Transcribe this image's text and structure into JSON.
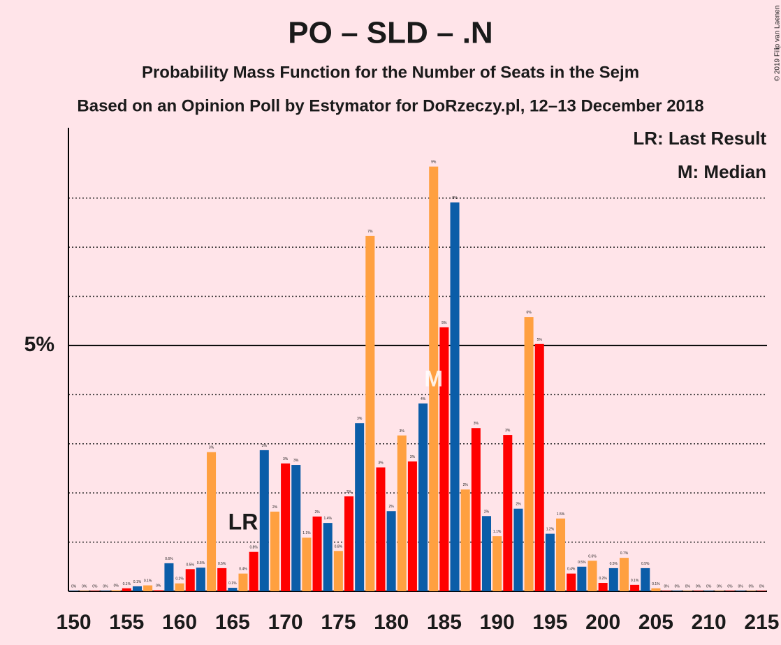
{
  "chart_data": {
    "type": "bar",
    "title": "PO – SLD – .N",
    "subtitle": "Probability Mass Function for the Number of Seats in the Sejm",
    "subtitle2": "Based on an Opinion Poll by Estymator for DoRzeczy.pl, 12–13 December 2018",
    "copyright": "© 2019 Filip van Laenen",
    "legend": [
      "LR: Last Result",
      "M: Median"
    ],
    "annotations": [
      {
        "label": "LR",
        "x": 166
      },
      {
        "label": "M",
        "x": 184
      }
    ],
    "colors": [
      "#ff0000",
      "#0b5da8",
      "#ffa040"
    ],
    "x": [
      150,
      151,
      152,
      153,
      154,
      155,
      156,
      157,
      158,
      159,
      160,
      161,
      162,
      163,
      164,
      165,
      166,
      167,
      168,
      169,
      170,
      171,
      172,
      173,
      174,
      175,
      176,
      177,
      178,
      179,
      180,
      181,
      182,
      183,
      184,
      185,
      186,
      187,
      188,
      189,
      190,
      191,
      192,
      193,
      194,
      195,
      196,
      197,
      198,
      199,
      200,
      201,
      202,
      203,
      204,
      205,
      206,
      207,
      208,
      209,
      210,
      211,
      212,
      213,
      214,
      215
    ],
    "values": [
      0.01,
      0.01,
      0.01,
      0.01,
      0.02,
      0.06,
      0.1,
      0.12,
      0.02,
      0.57,
      0.16,
      0.45,
      0.48,
      2.83,
      0.47,
      0.07,
      0.36,
      0.8,
      2.87,
      1.62,
      2.6,
      2.57,
      1.09,
      1.52,
      1.39,
      0.82,
      1.93,
      3.42,
      7.23,
      2.52,
      1.63,
      3.17,
      2.64,
      3.82,
      8.64,
      5.37,
      7.91,
      2.07,
      3.32,
      1.53,
      1.12,
      3.18,
      1.68,
      5.58,
      5.03,
      1.17,
      1.48,
      0.36,
      0.5,
      0.62,
      0.17,
      0.47,
      0.68,
      0.13,
      0.47,
      0.06,
      0.01,
      0.01,
      0.01,
      0.01,
      0.01,
      0.01,
      0.01,
      0.01,
      0.01,
      0.01
    ],
    "value_labels": [
      "0%",
      "0%",
      "0%",
      "0%",
      "0%",
      "0.1%",
      "0.1%",
      "0.1%",
      "0%",
      "0.6%",
      "0.2%",
      "0.5%",
      "0.5%",
      "3%",
      "0.5%",
      "0.1%",
      "0.4%",
      "0.8%",
      "3%",
      "2%",
      "3%",
      "3%",
      "1.1%",
      "2%",
      "1.4%",
      "0.8%",
      "2%",
      "3%",
      "7%",
      "3%",
      "2%",
      "3%",
      "3%",
      "4%",
      "9%",
      "5%",
      "8%",
      "2%",
      "3%",
      "2%",
      "1.1%",
      "3%",
      "2%",
      "6%",
      "5%",
      "1.2%",
      "1.5%",
      "0.4%",
      "0.5%",
      "0.6%",
      "0.2%",
      "0.5%",
      "0.7%",
      "0.1%",
      "0.5%",
      "0.1%",
      "0%",
      "0%",
      "0%",
      "0%",
      "0%",
      "0%",
      "0%",
      "0%",
      "0%",
      "0%"
    ],
    "xlim": [
      149.5,
      215.5
    ],
    "xticks": [
      150,
      155,
      160,
      165,
      170,
      175,
      180,
      185,
      190,
      195,
      200,
      205,
      210,
      215
    ],
    "ylim": [
      0,
      9.43
    ],
    "yticks": [
      {
        "value": 5,
        "label": "5%"
      }
    ],
    "minor_gridlines": [
      1,
      2,
      3,
      4,
      6,
      7,
      8
    ]
  }
}
